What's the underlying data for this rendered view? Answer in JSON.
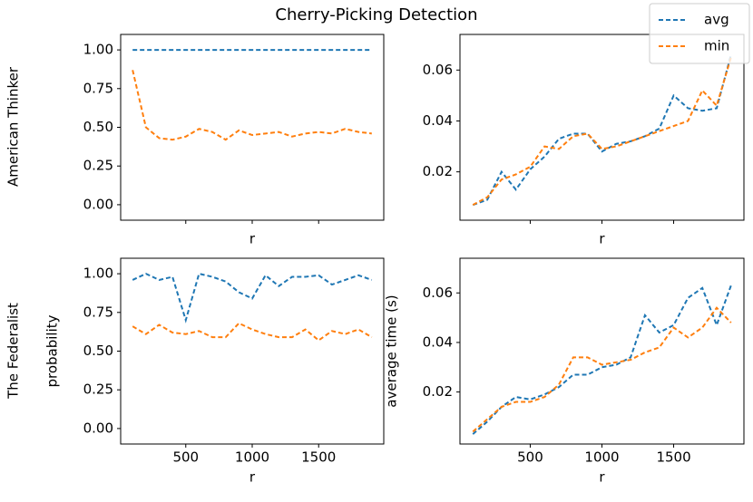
{
  "title": "Cherry-Picking Detection",
  "row_labels": [
    "American Thinker",
    "The Federalist"
  ],
  "chart_data": [
    {
      "type": "line",
      "xlabel": "r",
      "x": [
        100,
        200,
        300,
        400,
        500,
        600,
        700,
        800,
        900,
        1000,
        1100,
        1200,
        1300,
        1400,
        1500,
        1600,
        1700,
        1800,
        1900
      ],
      "xlim": [
        10,
        1990
      ],
      "xticks": [
        500,
        1000,
        1500
      ],
      "xtick_labels": false,
      "ylim": [
        -0.1,
        1.1
      ],
      "yticks": [
        {
          "value": 0,
          "label": "0.00"
        },
        0.25,
        {
          "value": 0.5,
          "label": "0.50"
        },
        0.75,
        {
          "value": 1,
          "label": "1.00"
        }
      ],
      "series": [
        {
          "name": "avg",
          "color": "#1f77b4",
          "values": [
            1,
            1,
            1,
            1,
            1,
            1,
            1,
            1,
            1,
            1,
            1,
            1,
            1,
            1,
            1,
            1,
            1,
            1,
            1
          ]
        },
        {
          "name": "min",
          "color": "#ff7f0e",
          "values": [
            0.87,
            0.5,
            0.43,
            0.42,
            0.44,
            0.49,
            0.47,
            0.42,
            0.48,
            0.45,
            0.46,
            0.47,
            0.44,
            0.46,
            0.47,
            0.46,
            0.49,
            0.47,
            0.46
          ]
        }
      ]
    },
    {
      "type": "line",
      "xlabel": "r",
      "legend": "upper right",
      "x": [
        100,
        200,
        300,
        400,
        500,
        600,
        700,
        800,
        900,
        1000,
        1100,
        1200,
        1300,
        1400,
        1500,
        1600,
        1700,
        1800,
        1900
      ],
      "xlim": [
        10,
        1990
      ],
      "xticks": [
        500,
        1000,
        1500
      ],
      "xtick_labels": false,
      "ylim": [
        0.001,
        0.074
      ],
      "yticks": [
        0.02,
        0.04,
        0.06
      ],
      "series": [
        {
          "name": "avg",
          "color": "#1f77b4",
          "values": [
            0.007,
            0.009,
            0.02,
            0.013,
            0.021,
            0.026,
            0.033,
            0.035,
            0.035,
            0.028,
            0.031,
            0.032,
            0.034,
            0.037,
            0.05,
            0.045,
            0.044,
            0.045,
            0.066
          ]
        },
        {
          "name": "min",
          "color": "#ff7f0e",
          "values": [
            0.007,
            0.01,
            0.017,
            0.019,
            0.022,
            0.03,
            0.029,
            0.034,
            0.035,
            0.029,
            0.03,
            0.032,
            0.034,
            0.036,
            0.038,
            0.04,
            0.052,
            0.046,
            0.065
          ]
        }
      ]
    },
    {
      "type": "line",
      "xlabel": "r",
      "ylabel": "probability",
      "x": [
        100,
        200,
        300,
        400,
        500,
        600,
        700,
        800,
        900,
        1000,
        1100,
        1200,
        1300,
        1400,
        1500,
        1600,
        1700,
        1800,
        1900
      ],
      "xlim": [
        10,
        1990
      ],
      "xticks": [
        500,
        1000,
        1500
      ],
      "ylim": [
        -0.1,
        1.1
      ],
      "yticks": [
        {
          "value": 0,
          "label": "0.00"
        },
        0.25,
        {
          "value": 0.5,
          "label": "0.50"
        },
        0.75,
        {
          "value": 1,
          "label": "1.00"
        }
      ],
      "series": [
        {
          "name": "avg",
          "color": "#1f77b4",
          "values": [
            0.96,
            1.0,
            0.96,
            0.98,
            0.7,
            1.0,
            0.98,
            0.95,
            0.88,
            0.84,
            0.99,
            0.92,
            0.98,
            0.98,
            0.99,
            0.93,
            0.96,
            0.99,
            0.96
          ]
        },
        {
          "name": "min",
          "color": "#ff7f0e",
          "values": [
            0.66,
            0.61,
            0.67,
            0.62,
            0.61,
            0.63,
            0.59,
            0.59,
            0.68,
            0.64,
            0.61,
            0.59,
            0.59,
            0.64,
            0.57,
            0.63,
            0.61,
            0.64,
            0.59
          ]
        }
      ]
    },
    {
      "type": "line",
      "xlabel": "r",
      "ylabel": "average time (s)",
      "x": [
        100,
        200,
        300,
        400,
        500,
        600,
        700,
        800,
        900,
        1000,
        1100,
        1200,
        1300,
        1400,
        1500,
        1600,
        1700,
        1800,
        1900
      ],
      "xlim": [
        10,
        1990
      ],
      "xticks": [
        500,
        1000,
        1500
      ],
      "ylim": [
        -0.001,
        0.074
      ],
      "yticks": [
        0.02,
        0.04,
        0.06
      ],
      "series": [
        {
          "name": "avg",
          "color": "#1f77b4",
          "values": [
            0.003,
            0.008,
            0.014,
            0.018,
            0.017,
            0.019,
            0.022,
            0.027,
            0.027,
            0.03,
            0.031,
            0.034,
            0.051,
            0.044,
            0.047,
            0.058,
            0.062,
            0.047,
            0.063
          ]
        },
        {
          "name": "min",
          "color": "#ff7f0e",
          "values": [
            0.004,
            0.009,
            0.014,
            0.016,
            0.016,
            0.018,
            0.023,
            0.034,
            0.034,
            0.031,
            0.032,
            0.033,
            0.036,
            0.038,
            0.046,
            0.042,
            0.046,
            0.054,
            0.048
          ]
        }
      ]
    }
  ]
}
